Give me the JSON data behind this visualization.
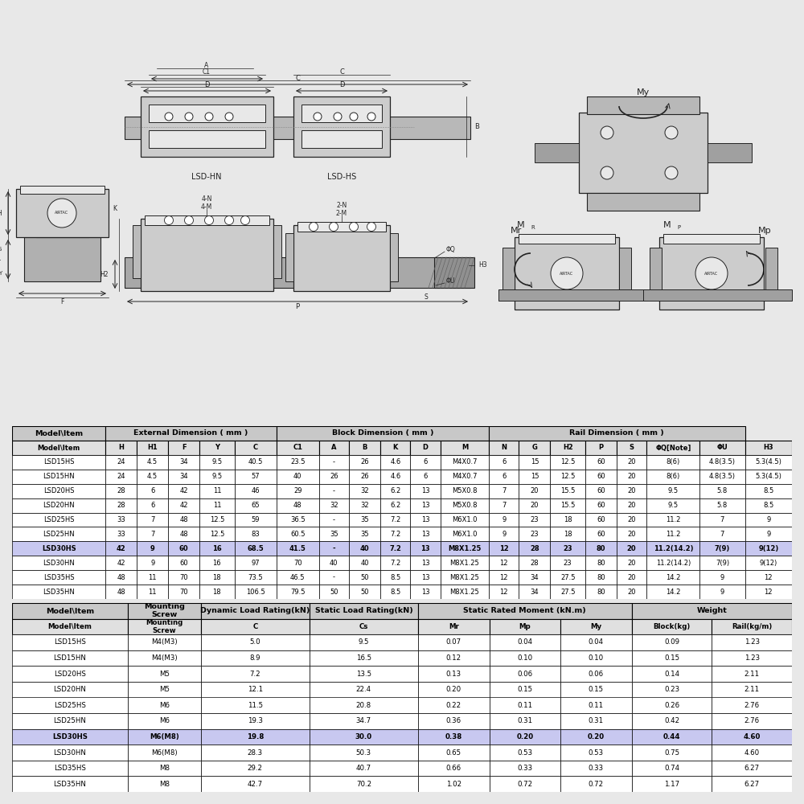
{
  "table1_header_groups": [
    {
      "label": "Model\\Item",
      "colspan": 1
    },
    {
      "label": "External Dimension ( mm )",
      "colspan": 5
    },
    {
      "label": "Block Dimension ( mm )",
      "colspan": 6
    },
    {
      "label": "Rail Dimension ( mm )",
      "colspan": 7
    }
  ],
  "table1_subheader": [
    "Model\\Item",
    "H",
    "H1",
    "F",
    "Y",
    "C",
    "C1",
    "A",
    "B",
    "K",
    "D",
    "M",
    "N",
    "G",
    "H2",
    "P",
    "S",
    "ΦQ[Note]",
    "ΦU",
    "H3"
  ],
  "table1_rows": [
    [
      "LSD15HS",
      "24",
      "4.5",
      "34",
      "9.5",
      "40.5",
      "23.5",
      "-",
      "26",
      "4.6",
      "6",
      "M4X0.7",
      "6",
      "15",
      "12.5",
      "60",
      "20",
      "8(6)",
      "4.8(3.5)",
      "5.3(4.5)"
    ],
    [
      "LSD15HN",
      "24",
      "4.5",
      "34",
      "9.5",
      "57",
      "40",
      "26",
      "26",
      "4.6",
      "6",
      "M4X0.7",
      "6",
      "15",
      "12.5",
      "60",
      "20",
      "8(6)",
      "4.8(3.5)",
      "5.3(4.5)"
    ],
    [
      "LSD20HS",
      "28",
      "6",
      "42",
      "11",
      "46",
      "29",
      "-",
      "32",
      "6.2",
      "13",
      "M5X0.8",
      "7",
      "20",
      "15.5",
      "60",
      "20",
      "9.5",
      "5.8",
      "8.5"
    ],
    [
      "LSD20HN",
      "28",
      "6",
      "42",
      "11",
      "65",
      "48",
      "32",
      "32",
      "6.2",
      "13",
      "M5X0.8",
      "7",
      "20",
      "15.5",
      "60",
      "20",
      "9.5",
      "5.8",
      "8.5"
    ],
    [
      "LSD25HS",
      "33",
      "7",
      "48",
      "12.5",
      "59",
      "36.5",
      "-",
      "35",
      "7.2",
      "13",
      "M6X1.0",
      "9",
      "23",
      "18",
      "60",
      "20",
      "11.2",
      "7",
      "9"
    ],
    [
      "LSD25HN",
      "33",
      "7",
      "48",
      "12.5",
      "83",
      "60.5",
      "35",
      "35",
      "7.2",
      "13",
      "M6X1.0",
      "9",
      "23",
      "18",
      "60",
      "20",
      "11.2",
      "7",
      "9"
    ],
    [
      "LSD30HS",
      "42",
      "9",
      "60",
      "16",
      "68.5",
      "41.5",
      "-",
      "40",
      "7.2",
      "13",
      "M8X1.25",
      "12",
      "28",
      "23",
      "80",
      "20",
      "11.2(14.2)",
      "7(9)",
      "9(12)"
    ],
    [
      "LSD30HN",
      "42",
      "9",
      "60",
      "16",
      "97",
      "70",
      "40",
      "40",
      "7.2",
      "13",
      "M8X1.25",
      "12",
      "28",
      "23",
      "80",
      "20",
      "11.2(14.2)",
      "7(9)",
      "9(12)"
    ],
    [
      "LSD35HS",
      "48",
      "11",
      "70",
      "18",
      "73.5",
      "46.5",
      "-",
      "50",
      "8.5",
      "13",
      "M8X1.25",
      "12",
      "34",
      "27.5",
      "80",
      "20",
      "14.2",
      "9",
      "12"
    ],
    [
      "LSD35HN",
      "48",
      "11",
      "70",
      "18",
      "106.5",
      "79.5",
      "50",
      "50",
      "8.5",
      "13",
      "M8X1.25",
      "12",
      "34",
      "27.5",
      "80",
      "20",
      "14.2",
      "9",
      "12"
    ]
  ],
  "table1_highlight_row": 6,
  "table2_header_groups": [
    {
      "label": "Model\\Item",
      "colspan": 1
    },
    {
      "label": "Mounting\nScrew",
      "colspan": 1
    },
    {
      "label": "Dynamic Load Rating(kN)",
      "colspan": 1
    },
    {
      "label": "Static Load Rating(kN)",
      "colspan": 1
    },
    {
      "label": "Static Rated Moment (kN.m)",
      "colspan": 3
    },
    {
      "label": "Weight",
      "colspan": 2
    }
  ],
  "table2_subheader": [
    "Model\\Item",
    "Mounting\nScrew",
    "C",
    "Cs",
    "Mr",
    "Mp",
    "My",
    "Block(kg)",
    "Rail(kg/m)"
  ],
  "table2_rows": [
    [
      "LSD15HS",
      "M4(M3)",
      "5.0",
      "9.5",
      "0.07",
      "0.04",
      "0.04",
      "0.09",
      "1.23"
    ],
    [
      "LSD15HN",
      "M4(M3)",
      "8.9",
      "16.5",
      "0.12",
      "0.10",
      "0.10",
      "0.15",
      "1.23"
    ],
    [
      "LSD20HS",
      "M5",
      "7.2",
      "13.5",
      "0.13",
      "0.06",
      "0.06",
      "0.14",
      "2.11"
    ],
    [
      "LSD20HN",
      "M5",
      "12.1",
      "22.4",
      "0.20",
      "0.15",
      "0.15",
      "0.23",
      "2.11"
    ],
    [
      "LSD25HS",
      "M6",
      "11.5",
      "20.8",
      "0.22",
      "0.11",
      "0.11",
      "0.26",
      "2.76"
    ],
    [
      "LSD25HN",
      "M6",
      "19.3",
      "34.7",
      "0.36",
      "0.31",
      "0.31",
      "0.42",
      "2.76"
    ],
    [
      "LSD30HS",
      "M6(M8)",
      "19.8",
      "30.0",
      "0.38",
      "0.20",
      "0.20",
      "0.44",
      "4.60"
    ],
    [
      "LSD30HN",
      "M6(M8)",
      "28.3",
      "50.3",
      "0.65",
      "0.53",
      "0.53",
      "0.75",
      "4.60"
    ],
    [
      "LSD35HS",
      "M8",
      "29.2",
      "40.7",
      "0.66",
      "0.33",
      "0.33",
      "0.74",
      "6.27"
    ],
    [
      "LSD35HN",
      "M8",
      "42.7",
      "70.2",
      "1.02",
      "0.72",
      "0.72",
      "1.17",
      "6.27"
    ]
  ],
  "table2_highlight_row": 6,
  "highlight_color": "#c8c8f0",
  "header_bg": "#c8c8c8",
  "subheader_bg": "#e0e0e0",
  "border_color": "#000000",
  "text_color": "#000000",
  "bg_color": "#ffffff",
  "outer_bg": "#e8e8e8",
  "lc": "#222222",
  "fc_rail": "#aaaaaa",
  "fc_block": "#cccccc",
  "fc_light": "#e8e8e8"
}
